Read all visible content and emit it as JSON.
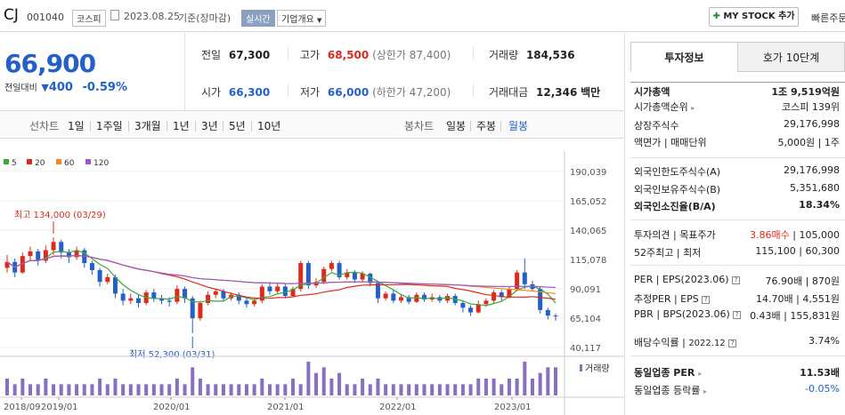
{
  "header": {
    "name": "CJ",
    "code": "001040",
    "market": "코스피",
    "date": "2023.08.25",
    "date_suffix": "기준(장마감)",
    "realtime": "실시간",
    "company_overview": "기업개요",
    "mystock": "MY STOCK 추가",
    "quick_order": "빠른주문"
  },
  "price": {
    "current": "66,900",
    "vs_label": "전일대비",
    "change": "400",
    "change_rate": "-0.59%"
  },
  "stats": {
    "prev_close_label": "전일",
    "prev_close": "67,300",
    "open_label": "시가",
    "open": "66,300",
    "high_label": "고가",
    "high": "68,500",
    "upper_limit": "(상한가 87,400)",
    "low_label": "저가",
    "low": "66,000",
    "lower_limit": "(하한가 47,200)",
    "volume_label": "거래량",
    "volume": "184,536",
    "amount_label": "거래대금",
    "amount": "12,346",
    "amount_unit": "백만"
  },
  "chart_tabs": {
    "line_label": "선차트",
    "line": [
      "1일",
      "1주일",
      "3개월",
      "1년",
      "3년",
      "5년",
      "10년"
    ],
    "candle_label": "봉차트",
    "candle": [
      "일봉",
      "주봉",
      "월봉"
    ],
    "active": "월봉"
  },
  "chart_data": {
    "type": "candlestick",
    "legend": [
      {
        "name": "5",
        "color": "#3aa83a"
      },
      {
        "name": "20",
        "color": "#e0291d"
      },
      {
        "name": "60",
        "color": "#f08a1c"
      },
      {
        "name": "120",
        "color": "#9b59c6"
      }
    ],
    "yticks": [
      "190,039",
      "165,052",
      "140,065",
      "115,078",
      "90,091",
      "65,104",
      "40,117"
    ],
    "ylim": [
      40117,
      190039
    ],
    "xticks": [
      "2018/09",
      "2019/01",
      "2020/01",
      "2021/01",
      "2022/01",
      "2023/01"
    ],
    "annotations": {
      "max": "최고 134,000 (03/29)",
      "min": "최저 52,300 (03/31)"
    },
    "volume_label": "거래량",
    "candles": [
      [
        108000,
        113000,
        104000,
        119000
      ],
      [
        113000,
        104000,
        100000,
        116000
      ],
      [
        104000,
        118000,
        103000,
        121000
      ],
      [
        118000,
        122000,
        114000,
        126000
      ],
      [
        122000,
        114000,
        110000,
        124000
      ],
      [
        114000,
        123000,
        112000,
        127000
      ],
      [
        123000,
        130000,
        119000,
        134000
      ],
      [
        130000,
        121000,
        116000,
        132000
      ],
      [
        121000,
        117000,
        112000,
        124000
      ],
      [
        117000,
        123000,
        115000,
        126000
      ],
      [
        123000,
        112000,
        108000,
        125000
      ],
      [
        112000,
        106000,
        102000,
        114000
      ],
      [
        106000,
        96000,
        92000,
        108000
      ],
      [
        96000,
        100000,
        94000,
        103000
      ],
      [
        100000,
        86000,
        82000,
        102000
      ],
      [
        86000,
        80000,
        76000,
        90000
      ],
      [
        80000,
        82000,
        77000,
        86000
      ],
      [
        82000,
        78000,
        74000,
        85000
      ],
      [
        78000,
        87000,
        76000,
        89000
      ],
      [
        87000,
        82000,
        79000,
        90000
      ],
      [
        82000,
        80000,
        77000,
        85000
      ],
      [
        80000,
        79000,
        75000,
        83000
      ],
      [
        79000,
        90000,
        77000,
        93000
      ],
      [
        90000,
        82000,
        78000,
        92000
      ],
      [
        82000,
        65000,
        52300,
        84000
      ],
      [
        65000,
        78000,
        63000,
        80000
      ],
      [
        78000,
        85000,
        76000,
        88000
      ],
      [
        85000,
        88000,
        82000,
        90000
      ],
      [
        88000,
        82000,
        80000,
        90000
      ],
      [
        82000,
        85000,
        80000,
        87000
      ],
      [
        85000,
        80000,
        77000,
        87000
      ],
      [
        80000,
        77000,
        74000,
        82000
      ],
      [
        77000,
        80000,
        75000,
        82000
      ],
      [
        80000,
        92000,
        78000,
        94000
      ],
      [
        92000,
        88000,
        85000,
        96000
      ],
      [
        88000,
        92000,
        86000,
        95000
      ],
      [
        92000,
        84000,
        82000,
        95000
      ],
      [
        84000,
        90000,
        83000,
        92000
      ],
      [
        90000,
        112000,
        88000,
        114000
      ],
      [
        112000,
        93000,
        90000,
        114000
      ],
      [
        93000,
        96000,
        91000,
        99000
      ],
      [
        96000,
        107000,
        94000,
        109000
      ],
      [
        107000,
        112000,
        105000,
        114000
      ],
      [
        112000,
        100000,
        98000,
        114000
      ],
      [
        100000,
        104000,
        98000,
        107000
      ],
      [
        104000,
        98000,
        95000,
        106000
      ],
      [
        98000,
        103000,
        96000,
        105000
      ],
      [
        103000,
        95000,
        92000,
        104000
      ],
      [
        95000,
        82000,
        78000,
        97000
      ],
      [
        82000,
        86000,
        80000,
        88000
      ],
      [
        86000,
        80000,
        78000,
        89000
      ],
      [
        80000,
        83000,
        78000,
        85000
      ],
      [
        83000,
        79000,
        77000,
        85000
      ],
      [
        79000,
        85000,
        78000,
        87000
      ],
      [
        85000,
        81000,
        79000,
        87000
      ],
      [
        81000,
        83000,
        79000,
        86000
      ],
      [
        83000,
        80000,
        78000,
        85000
      ],
      [
        80000,
        84000,
        78000,
        86000
      ],
      [
        84000,
        78000,
        76000,
        86000
      ],
      [
        78000,
        74000,
        70000,
        80000
      ],
      [
        74000,
        70000,
        67000,
        76000
      ],
      [
        70000,
        77000,
        69000,
        80000
      ],
      [
        77000,
        80000,
        75000,
        82000
      ],
      [
        80000,
        87000,
        78000,
        89000
      ],
      [
        87000,
        83000,
        80000,
        89000
      ],
      [
        83000,
        90000,
        82000,
        92000
      ],
      [
        90000,
        104000,
        88000,
        106000
      ],
      [
        104000,
        94000,
        90000,
        116000
      ],
      [
        94000,
        90000,
        88000,
        97000
      ],
      [
        90000,
        72000,
        69000,
        92000
      ],
      [
        72000,
        67300,
        64000,
        74000
      ],
      [
        67300,
        66900,
        63000,
        69000
      ]
    ],
    "volume": [
      3,
      2,
      3,
      2,
      2,
      3,
      2,
      2,
      2,
      2,
      2,
      2,
      3,
      2,
      3,
      2,
      2,
      2,
      2,
      2,
      2,
      2,
      3,
      2,
      5,
      3,
      2,
      2,
      2,
      2,
      2,
      2,
      2,
      3,
      2,
      2,
      2,
      3,
      2,
      6,
      4,
      5,
      3,
      4,
      2,
      2,
      3,
      2,
      3,
      2,
      2,
      2,
      2,
      2,
      2,
      2,
      2,
      2,
      2,
      2,
      2,
      3,
      3,
      3,
      2,
      3,
      3,
      6,
      3,
      4,
      5,
      5
    ]
  },
  "right_panel": {
    "tabs": [
      "투자정보",
      "호가 10단계"
    ],
    "rows": {
      "market_cap_label": "시가총액",
      "market_cap": "1조 9,519억원",
      "market_cap_rank_label": "시가총액순위",
      "market_cap_rank": "코스피 139위",
      "shares_label": "상장주식수",
      "shares": "29,176,998",
      "par_label": "액면가",
      "trade_unit_label": "매매단위",
      "par": "5,000원",
      "trade_unit": "1주",
      "foreign_limit_label": "외국인한도주식수(A)",
      "foreign_limit": "29,176,998",
      "foreign_hold_label": "외국인보유주식수(B)",
      "foreign_hold": "5,351,680",
      "foreign_ratio_label": "외국인소진율(B/A)",
      "foreign_ratio": "18.34%",
      "opinion_label": "투자의견",
      "target_label": "목표주가",
      "opinion": "3.86매수",
      "target": "105,000",
      "w52_high_label": "52주최고",
      "w52_low_label": "최저",
      "w52_high": "115,100",
      "w52_low": "60,300",
      "per_label": "PER",
      "eps_label": "EPS(2023.06)",
      "per": "76.90배",
      "eps": "870원",
      "est_per_label": "추정PER",
      "est_eps_label": "EPS",
      "est_per": "14.70배",
      "est_eps": "4,551원",
      "pbr_label": "PBR",
      "bps_label": "BPS(2023.06)",
      "pbr": "0.43배",
      "bps": "155,831원",
      "div_label": "배당수익률",
      "div_date": "2022.12",
      "div": "3.74%",
      "ind_per_label": "동일업종 PER",
      "ind_per": "11.53배",
      "ind_rate_label": "동일업종 등락률",
      "ind_rate": "-0.05%"
    }
  }
}
